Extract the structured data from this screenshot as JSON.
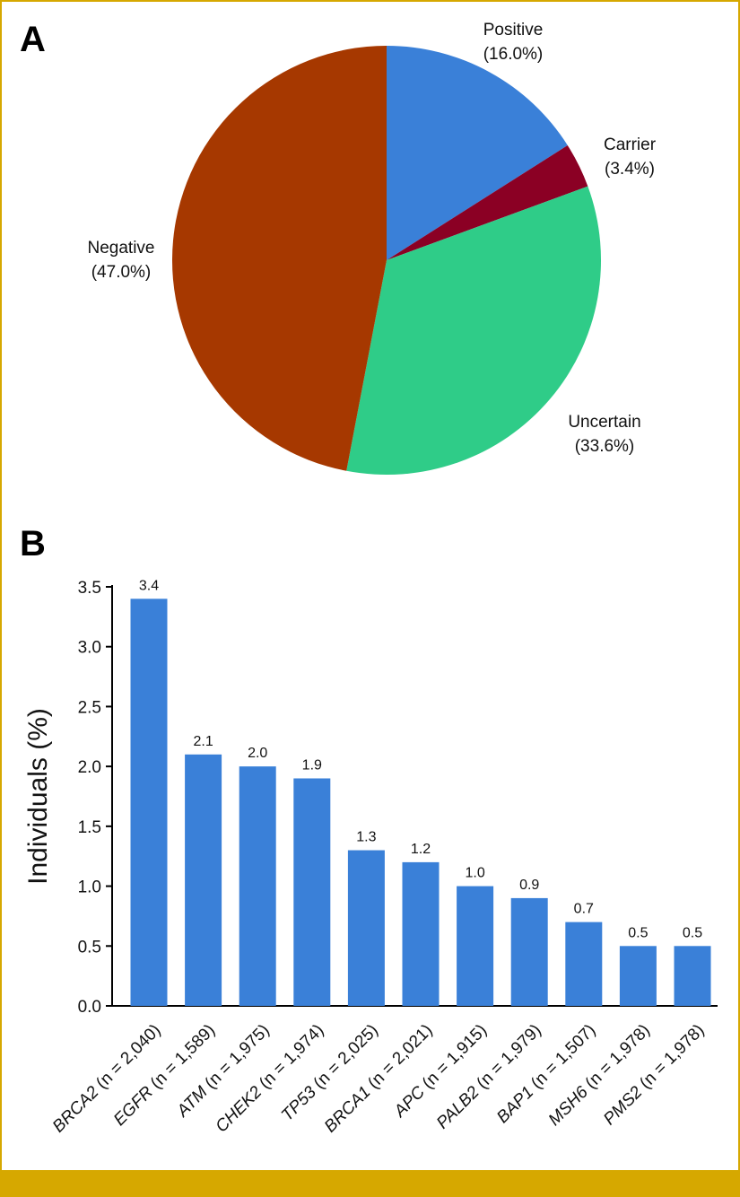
{
  "panels": {
    "a": "A",
    "b": "B"
  },
  "chart_data": [
    {
      "type": "pie",
      "panel": "A",
      "start": "12 o'clock, clockwise",
      "slices": [
        {
          "name": "Positive",
          "value": 16.0,
          "label": "(16.0%)",
          "color": "#3a80d8"
        },
        {
          "name": "Carrier",
          "value": 3.4,
          "label": "(3.4%)",
          "color": "#8b0024"
        },
        {
          "name": "Uncertain",
          "value": 33.6,
          "label": "(33.6%)",
          "color": "#2fcc88"
        },
        {
          "name": "Negative",
          "value": 47.0,
          "label": "(47.0%)",
          "color": "#a63800"
        }
      ]
    },
    {
      "type": "bar",
      "panel": "B",
      "ylabel": "Individuals (%)",
      "ylim": [
        0,
        3.5
      ],
      "yticks": [
        "0.0",
        "0.5",
        "1.0",
        "1.5",
        "2.0",
        "2.5",
        "3.0",
        "3.5"
      ],
      "bar_color": "#3a80d8",
      "categories": [
        {
          "gene": "BRCA2",
          "n": "(n = 2,040)"
        },
        {
          "gene": "EGFR",
          "n": "(n = 1,589)"
        },
        {
          "gene": "ATM",
          "n": "(n = 1,975)"
        },
        {
          "gene": "CHEK2",
          "n": "(n = 1,974)"
        },
        {
          "gene": "TP53",
          "n": "(n = 2,025)"
        },
        {
          "gene": "BRCA1",
          "n": "(n = 2,021)"
        },
        {
          "gene": "APC",
          "n": "(n = 1,915)"
        },
        {
          "gene": "PALB2",
          "n": "(n = 1,979)"
        },
        {
          "gene": "BAP1",
          "n": "(n = 1,507)"
        },
        {
          "gene": "MSH6",
          "n": "(n = 1,978)"
        },
        {
          "gene": "PMS2",
          "n": "(n = 1,978)"
        }
      ],
      "values": [
        3.4,
        2.1,
        2.0,
        1.9,
        1.3,
        1.2,
        1.0,
        0.9,
        0.7,
        0.5,
        0.5
      ],
      "value_labels": [
        "3.4",
        "2.1",
        "2.0",
        "1.9",
        "1.3",
        "1.2",
        "1.0",
        "0.9",
        "0.7",
        "0.5",
        "0.5"
      ]
    }
  ]
}
